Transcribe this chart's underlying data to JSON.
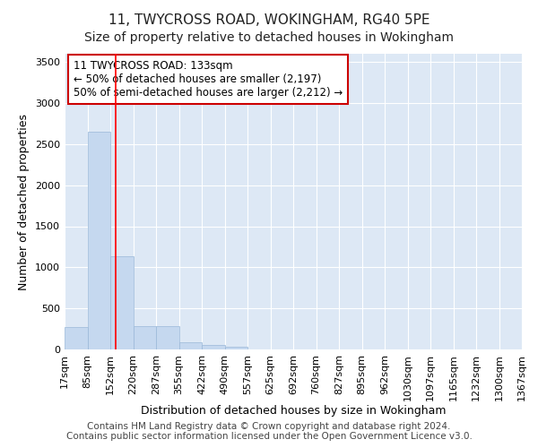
{
  "title_line1": "11, TWYCROSS ROAD, WOKINGHAM, RG40 5PE",
  "title_line2": "Size of property relative to detached houses in Wokingham",
  "xlabel": "Distribution of detached houses by size in Wokingham",
  "ylabel": "Number of detached properties",
  "bar_color": "#c5d8ef",
  "bar_edge_color": "#9ab8d8",
  "bar_counts": [
    270,
    2650,
    1140,
    285,
    280,
    90,
    55,
    35,
    0,
    0,
    0,
    0,
    0,
    0,
    0,
    0,
    0,
    0,
    0,
    0
  ],
  "bin_labels": [
    "17sqm",
    "85sqm",
    "152sqm",
    "220sqm",
    "287sqm",
    "355sqm",
    "422sqm",
    "490sqm",
    "557sqm",
    "625sqm",
    "692sqm",
    "760sqm",
    "827sqm",
    "895sqm",
    "962sqm",
    "1030sqm",
    "1097sqm",
    "1165sqm",
    "1232sqm",
    "1300sqm",
    "1367sqm"
  ],
  "ylim": [
    0,
    3600
  ],
  "yticks": [
    0,
    500,
    1000,
    1500,
    2000,
    2500,
    3000,
    3500
  ],
  "red_line_bin": 1,
  "annotation_text": "11 TWYCROSS ROAD: 133sqm\n← 50% of detached houses are smaller (2,197)\n50% of semi-detached houses are larger (2,212) →",
  "annotation_box_color": "#ffffff",
  "annotation_box_edge": "#cc0000",
  "footer_line1": "Contains HM Land Registry data © Crown copyright and database right 2024.",
  "footer_line2": "Contains public sector information licensed under the Open Government Licence v3.0.",
  "plot_bg_color": "#dde8f5",
  "fig_bg_color": "#ffffff",
  "grid_color": "#ffffff",
  "title_fontsize": 11,
  "subtitle_fontsize": 10,
  "axis_label_fontsize": 9,
  "tick_fontsize": 8,
  "footer_fontsize": 7.5,
  "annotation_fontsize": 8.5
}
